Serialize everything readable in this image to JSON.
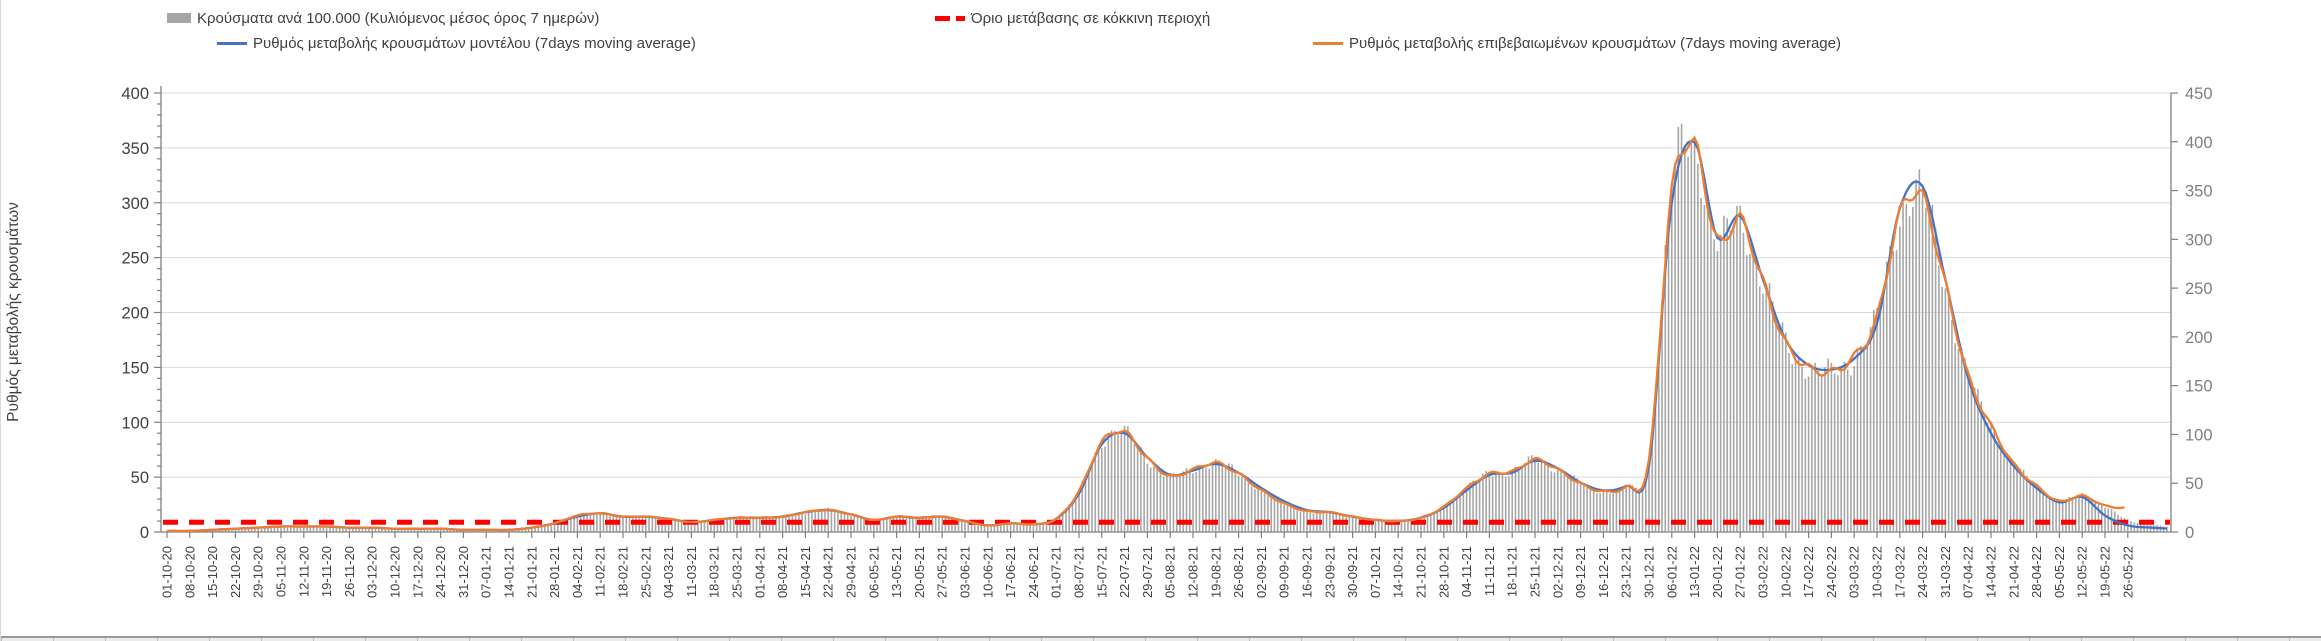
{
  "legend": {
    "bars": "Κρούσματα ανά 100.000 (Κυλιόμενος μέσος όρος 7 ημερών)",
    "threshold": "Όριο μετάβασης σε κόκκινη περιοχή",
    "model": "Ρυθμός μεταβολής κρουσμάτων μοντέλου (7days moving average)",
    "confirmed": "Ρυθμός μεταβολής επιβεβαιωμένων κρουσμάτων (7days moving average)"
  },
  "colors": {
    "bars": "#a6a6a6",
    "model": "#4472c4",
    "confirmed": "#ed7d31",
    "threshold": "#ff0000",
    "grid": "#d9d9d9",
    "axis": "#808080",
    "text": "#404040",
    "right_text": "#7f7f7f"
  },
  "chart_data": {
    "type": "bar",
    "subtype": "daily bars + two 7-day moving-average lines + dashed threshold",
    "title": "",
    "xlabel": "",
    "ylabel_left": "Ρυθμός μεταβολής κρουσμάτων",
    "left_axis": {
      "min": 0,
      "max": 400,
      "step": 50,
      "tick_labels": [
        "0",
        "50",
        "100",
        "150",
        "200",
        "250",
        "300",
        "350",
        "400"
      ]
    },
    "right_axis": {
      "min": 0,
      "max": 450,
      "step": 50,
      "tick_labels": [
        "0",
        "50",
        "100",
        "150",
        "200",
        "250",
        "300",
        "350",
        "400",
        "450"
      ]
    },
    "grid": "horizontal, every 50 units of left axis",
    "legend_position": "top, two rows two columns",
    "threshold": {
      "name": "Όριο μετάβασης σε κόκκινη περιοχή",
      "axis": "right",
      "value": 10,
      "style": "dashed",
      "color": "#ff0000"
    },
    "x_labels": [
      "01-10-20",
      "08-10-20",
      "15-10-20",
      "22-10-20",
      "29-10-20",
      "05-11-20",
      "12-11-20",
      "19-11-20",
      "26-11-20",
      "03-12-20",
      "10-12-20",
      "17-12-20",
      "24-12-20",
      "31-12-20",
      "07-01-21",
      "14-01-21",
      "21-01-21",
      "28-01-21",
      "04-02-21",
      "11-02-21",
      "18-02-21",
      "25-02-21",
      "04-03-21",
      "11-03-21",
      "18-03-21",
      "25-03-21",
      "01-04-21",
      "08-04-21",
      "15-04-21",
      "22-04-21",
      "29-04-21",
      "06-05-21",
      "13-05-21",
      "20-05-21",
      "27-05-21",
      "03-06-21",
      "10-06-21",
      "17-06-21",
      "24-06-21",
      "01-07-21",
      "08-07-21",
      "15-07-21",
      "22-07-21",
      "29-07-21",
      "05-08-21",
      "12-08-21",
      "19-08-21",
      "26-08-21",
      "02-09-21",
      "09-09-21",
      "16-09-21",
      "23-09-21",
      "30-09-21",
      "07-10-21",
      "14-10-21",
      "21-10-21",
      "28-10-21",
      "04-11-21",
      "11-11-21",
      "18-11-21",
      "25-11-21",
      "02-12-21",
      "09-12-21",
      "16-12-21",
      "23-12-21",
      "30-12-21",
      "06-01-22",
      "13-01-22",
      "20-01-22",
      "27-01-22",
      "03-02-22",
      "10-02-22",
      "17-02-22",
      "24-02-22",
      "03-03-22",
      "10-03-22",
      "17-03-22",
      "24-03-22",
      "31-03-22",
      "07-04-22",
      "14-04-22",
      "21-04-22",
      "28-04-22",
      "05-05-22",
      "12-05-22",
      "19-05-22",
      "26-05-22"
    ],
    "series": [
      {
        "name": "Κρούσματα ανά 100.000 (Κυλιόμενος μέσος όρος 7 ημερών)",
        "type": "bar",
        "axis": "right",
        "color": "#a6a6a6",
        "note": "thin daily bars; weekly anchor values read from chart",
        "values": [
          1,
          1,
          2,
          3,
          5,
          6,
          6,
          6,
          5,
          5,
          3,
          3,
          3,
          2,
          2,
          2,
          5,
          9,
          17,
          19,
          16,
          16,
          14,
          10,
          12,
          15,
          15,
          16,
          20,
          23,
          18,
          12,
          16,
          15,
          16,
          11,
          7,
          9,
          8,
          14,
          42,
          92,
          102,
          75,
          57,
          64,
          71,
          60,
          43,
          29,
          21,
          20,
          16,
          12,
          11,
          15,
          26,
          45,
          60,
          62,
          74,
          64,
          50,
          42,
          46,
          73,
          349,
          396,
          298,
          321,
          257,
          194,
          169,
          164,
          180,
          219,
          326,
          343,
          253,
          160,
          109,
          70,
          47,
          32,
          37,
          27,
          12
        ],
        "tail_unlabeled_weeks": [
          8,
          5
        ]
      },
      {
        "name": "Ρυθμός μεταβολής κρουσμάτων μοντέλου (7days moving average)",
        "type": "line",
        "axis": "left",
        "color": "#4472c4",
        "values": [
          1,
          1,
          2,
          3,
          4,
          5,
          5,
          5,
          4,
          4,
          3,
          3,
          3,
          2,
          2,
          2,
          4,
          8,
          14,
          17,
          14,
          14,
          12,
          9,
          11,
          13,
          13,
          14,
          18,
          20,
          16,
          11,
          14,
          13,
          14,
          10,
          6,
          8,
          7,
          12,
          35,
          80,
          90,
          68,
          52,
          56,
          62,
          54,
          40,
          28,
          20,
          18,
          14,
          11,
          10,
          13,
          22,
          38,
          52,
          54,
          65,
          58,
          45,
          38,
          42,
          60,
          300,
          355,
          268,
          288,
          230,
          175,
          152,
          148,
          158,
          190,
          295,
          315,
          230,
          140,
          90,
          60,
          40,
          27,
          32,
          15,
          6
        ],
        "tail_unlabeled_weeks": [
          4,
          3
        ]
      },
      {
        "name": "Ρυθμός μεταβολής επιβεβαιωμένων κρουσμάτων (7days moving average)",
        "type": "line",
        "axis": "left",
        "color": "#ed7d31",
        "values": [
          1,
          1,
          2,
          3,
          4,
          5,
          5,
          5,
          4,
          4,
          3,
          3,
          3,
          2,
          2,
          2,
          4,
          8,
          15,
          17,
          14,
          14,
          12,
          9,
          11,
          13,
          13,
          14,
          18,
          20,
          16,
          11,
          14,
          13,
          14,
          10,
          6,
          8,
          7,
          12,
          37,
          82,
          91,
          67,
          51,
          57,
          63,
          53,
          38,
          26,
          19,
          18,
          14,
          11,
          10,
          13,
          23,
          40,
          53,
          55,
          66,
          57,
          44,
          37,
          41,
          65,
          310,
          352,
          265,
          285,
          228,
          172,
          150,
          146,
          160,
          195,
          290,
          305,
          225,
          142,
          97,
          62,
          42,
          28,
          33,
          24,
          22
        ],
        "tail_unlabeled_weeks": []
      }
    ]
  }
}
